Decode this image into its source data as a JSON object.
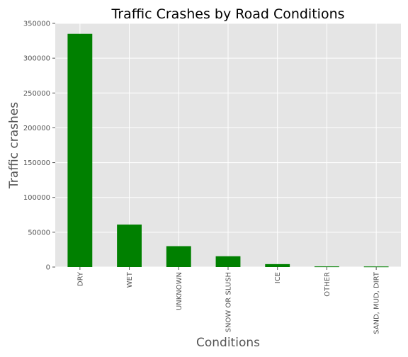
{
  "chart_data": {
    "type": "bar",
    "title": "Traffic Crashes by Road Conditions",
    "xlabel": "Conditions",
    "ylabel": "Traffic crashes",
    "categories": [
      "DRY",
      "WET",
      "UNKNOWN",
      "SNOW OR SLUSH",
      "ICE",
      "OTHER",
      "SAND, MUD, DIRT"
    ],
    "values": [
      335000,
      61000,
      30000,
      15500,
      4200,
      900,
      800
    ],
    "ylim": [
      0,
      350000
    ],
    "yticks": [
      0,
      50000,
      100000,
      150000,
      200000,
      250000,
      300000,
      350000
    ],
    "ytick_labels": [
      "0",
      "50000",
      "100000",
      "150000",
      "200000",
      "250000",
      "300000",
      "350000"
    ],
    "grid": true,
    "bar_color": "#008000",
    "plot_background": "#e5e5e5",
    "grid_color": "#ffffff"
  }
}
